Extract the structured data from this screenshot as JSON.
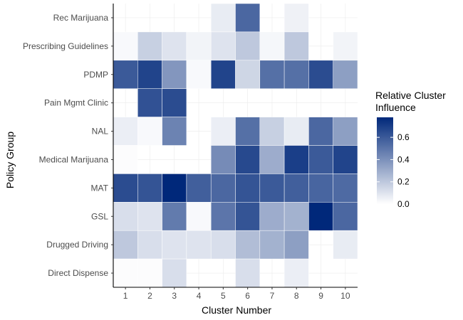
{
  "chart_data": {
    "type": "heatmap",
    "title": "",
    "xlabel": "Cluster Number",
    "ylabel": "Policy Group",
    "x_categories": [
      "1",
      "2",
      "3",
      "4",
      "5",
      "6",
      "7",
      "8",
      "9",
      "10"
    ],
    "y_categories": [
      "Rec Marijuana",
      "Prescribing Guidelines",
      "PDMP",
      "Pain Mgmt Clinic",
      "NAL",
      "Medical Marijuana",
      "MAT",
      "GSL",
      "Drugged Driving",
      "Direct Dispense"
    ],
    "values": [
      [
        null,
        null,
        null,
        null,
        0.07,
        0.55,
        null,
        0.05,
        null,
        null
      ],
      [
        0.02,
        0.17,
        0.1,
        0.04,
        0.1,
        0.2,
        0.03,
        0.2,
        null,
        0.04
      ],
      [
        0.6,
        0.68,
        0.38,
        0.02,
        0.68,
        0.15,
        0.52,
        0.52,
        0.65,
        0.35
      ],
      [
        null,
        0.63,
        0.65,
        null,
        null,
        null,
        null,
        null,
        null,
        null
      ],
      [
        0.06,
        0.02,
        0.45,
        null,
        0.06,
        0.52,
        0.17,
        0.07,
        0.55,
        0.35
      ],
      [
        0.01,
        null,
        null,
        null,
        0.42,
        0.66,
        0.3,
        0.7,
        0.6,
        0.68
      ],
      [
        0.65,
        0.62,
        0.78,
        0.58,
        0.55,
        0.62,
        0.6,
        0.58,
        0.56,
        0.54
      ],
      [
        0.12,
        0.1,
        0.48,
        0.02,
        0.5,
        0.62,
        0.3,
        0.28,
        0.78,
        0.55
      ],
      [
        0.2,
        0.12,
        0.1,
        0.1,
        0.12,
        0.24,
        0.28,
        0.35,
        null,
        0.07
      ],
      [
        0.01,
        0.01,
        0.12,
        null,
        null,
        0.12,
        null,
        0.06,
        null,
        null
      ]
    ],
    "value_range": [
      0,
      0.78
    ],
    "colors": {
      "low": "#ffffff",
      "high": "#00287a",
      "background": "#ffffff",
      "axis": "#000000",
      "grid": "#ebebeb"
    },
    "legend": {
      "title_line1": "Relative Cluster",
      "title_line2": "Influence",
      "ticks": [
        0.0,
        0.2,
        0.4,
        0.6
      ],
      "tick_labels": [
        "0.0",
        "0.2",
        "0.4",
        "0.6"
      ],
      "placement": "right"
    }
  }
}
